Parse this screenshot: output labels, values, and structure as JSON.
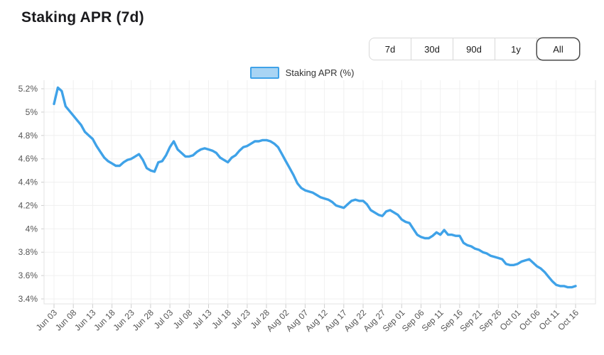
{
  "header": {
    "title": "Staking APR (7d)"
  },
  "range_selector": {
    "options": [
      {
        "label": "7d",
        "active": false
      },
      {
        "label": "30d",
        "active": false
      },
      {
        "label": "90d",
        "active": false
      },
      {
        "label": "1y",
        "active": false
      },
      {
        "label": "All",
        "active": true
      }
    ]
  },
  "legend": {
    "label": "Staking APR (%)",
    "swatch_fill": "#A8D4F4",
    "swatch_border": "#3FA2E8"
  },
  "chart_data": {
    "type": "line",
    "title": "Staking APR (7d)",
    "xlabel": "",
    "ylabel": "",
    "ylim": [
      3.4,
      5.2
    ],
    "grid": true,
    "legend_position": "top",
    "x_tick_every": 5,
    "x_tick_labels": [
      "Jun 03",
      "Jun 08",
      "Jun 13",
      "Jun 18",
      "Jun 23",
      "Jun 28",
      "Jul 03",
      "Jul 08",
      "Jul 13",
      "Jul 18",
      "Jul 23",
      "Jul 28",
      "Aug 02",
      "Aug 07",
      "Aug 12",
      "Aug 17",
      "Aug 22",
      "Aug 27",
      "Sep 01",
      "Sep 06",
      "Sep 11",
      "Sep 16",
      "Sep 21",
      "Sep 26",
      "Oct 01",
      "Oct 06",
      "Oct 11",
      "Oct 16"
    ],
    "y_tick_labels": [
      "5.2%",
      "5%",
      "4.8%",
      "4.6%",
      "4.4%",
      "4.2%",
      "4%",
      "3.8%",
      "3.6%",
      "3.4%"
    ],
    "y_tick_values": [
      5.2,
      5.0,
      4.8,
      4.6,
      4.4,
      4.2,
      4.0,
      3.8,
      3.6,
      3.4
    ],
    "series": [
      {
        "name": "Staking APR (%)",
        "color": "#3FA2E8",
        "values": [
          5.07,
          5.21,
          5.18,
          5.05,
          5.01,
          4.97,
          4.93,
          4.89,
          4.83,
          4.8,
          4.77,
          4.71,
          4.66,
          4.61,
          4.58,
          4.56,
          4.54,
          4.54,
          4.57,
          4.59,
          4.6,
          4.62,
          4.64,
          4.59,
          4.52,
          4.5,
          4.49,
          4.57,
          4.58,
          4.63,
          4.7,
          4.75,
          4.68,
          4.65,
          4.62,
          4.62,
          4.63,
          4.66,
          4.68,
          4.69,
          4.68,
          4.67,
          4.65,
          4.61,
          4.59,
          4.57,
          4.61,
          4.63,
          4.67,
          4.7,
          4.71,
          4.73,
          4.75,
          4.75,
          4.76,
          4.76,
          4.75,
          4.73,
          4.7,
          4.64,
          4.58,
          4.52,
          4.46,
          4.39,
          4.35,
          4.33,
          4.32,
          4.31,
          4.29,
          4.27,
          4.26,
          4.25,
          4.23,
          4.2,
          4.19,
          4.18,
          4.21,
          4.24,
          4.25,
          4.24,
          4.24,
          4.21,
          4.16,
          4.14,
          4.12,
          4.11,
          4.15,
          4.16,
          4.14,
          4.12,
          4.08,
          4.06,
          4.05,
          4.0,
          3.95,
          3.93,
          3.92,
          3.92,
          3.94,
          3.97,
          3.95,
          3.99,
          3.95,
          3.95,
          3.94,
          3.94,
          3.88,
          3.86,
          3.85,
          3.83,
          3.82,
          3.8,
          3.79,
          3.77,
          3.76,
          3.75,
          3.74,
          3.7,
          3.69,
          3.69,
          3.7,
          3.72,
          3.73,
          3.74,
          3.71,
          3.68,
          3.66,
          3.63,
          3.59,
          3.55,
          3.52,
          3.51,
          3.51,
          3.5,
          3.5,
          3.51
        ]
      }
    ],
    "colors": {
      "grid": "#F0F0F0",
      "axis_border": "#E3E3E3",
      "tick": "#CDCDCD",
      "tick_label": "#555555"
    }
  }
}
